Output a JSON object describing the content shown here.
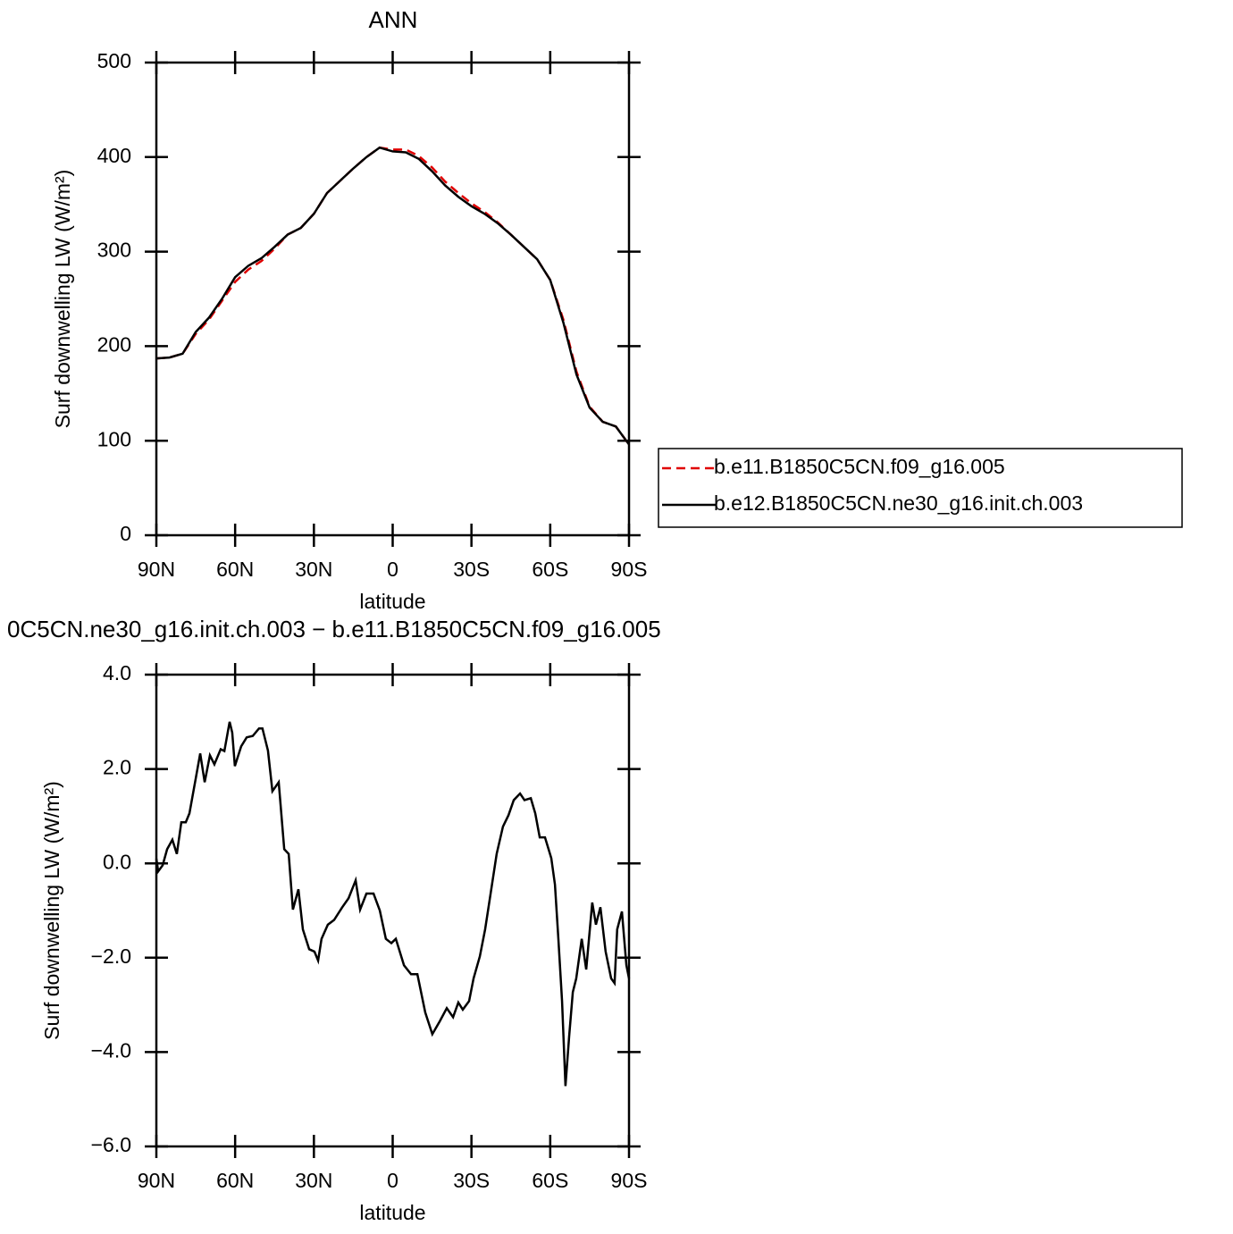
{
  "chart_data": [
    {
      "type": "line",
      "title": "ANN",
      "xlabel": "latitude",
      "ylabel": "Surf downwelling LW (W/m²)",
      "x": [
        90,
        85,
        80,
        75,
        70,
        65,
        60,
        55,
        50,
        45,
        40,
        35,
        30,
        25,
        20,
        15,
        10,
        5,
        0,
        -5,
        -10,
        -15,
        -20,
        -25,
        -30,
        -35,
        -40,
        -45,
        -50,
        -55,
        -60,
        -65,
        -70,
        -75,
        -80,
        -85,
        -90
      ],
      "series": [
        {
          "name": "b.e11.B1850C5CN.f09_g16.005",
          "color": "#e00000",
          "style": "dashed",
          "values": [
            187,
            188,
            192,
            213,
            228,
            248,
            268,
            281,
            290,
            303,
            318,
            325,
            340,
            362,
            375,
            388,
            400,
            410,
            408,
            408,
            401,
            389,
            374,
            362,
            351,
            342,
            331,
            318,
            305,
            292,
            270,
            228,
            173,
            136,
            120,
            115,
            96
          ]
        },
        {
          "name": "b.e12.B1850C5CN.ne30_g16.init.ch.003",
          "color": "#000000",
          "style": "solid",
          "values": [
            187,
            188,
            192,
            215,
            230,
            250,
            273,
            285,
            293,
            305,
            318,
            325,
            340,
            362,
            375,
            388,
            400,
            410,
            406,
            405,
            398,
            385,
            370,
            358,
            348,
            340,
            330,
            318,
            305,
            292,
            270,
            225,
            170,
            135,
            120,
            115,
            96
          ]
        }
      ],
      "xlim": [
        90,
        -90
      ],
      "xticks": [
        {
          "value": 90,
          "label": "90N"
        },
        {
          "value": 60,
          "label": "60N"
        },
        {
          "value": 30,
          "label": "30N"
        },
        0,
        {
          "value": -30,
          "label": "30S"
        },
        {
          "value": -60,
          "label": "60S"
        },
        {
          "value": -90,
          "label": "90S"
        }
      ],
      "ylim": [
        0,
        500
      ],
      "yticks": [
        0,
        100,
        200,
        300,
        400,
        500
      ],
      "legend": "right"
    },
    {
      "type": "line",
      "title": "0C5CN.ne30_g16.init.ch.003 − b.e11.B1850C5CN.f09_g16.005",
      "xlabel": "latitude",
      "ylabel": "Surf downwelling LW (W/m²)",
      "x": [
        90,
        89.3,
        87.6,
        85.9,
        83.9,
        82.2,
        80.5,
        78.8,
        77.4,
        75,
        73.3,
        71.6,
        69.6,
        67.9,
        65.5,
        64.1,
        62.1,
        61.1,
        60.1,
        57.7,
        55.6,
        53.3,
        50.9,
        49.6,
        47.5,
        45.8,
        43.4,
        41.3,
        39.6,
        38,
        35.9,
        34.2,
        31.8,
        29.8,
        28.4,
        27.1,
        24.7,
        22.3,
        19.2,
        16.8,
        14.1,
        12.4,
        10,
        7.3,
        4.9,
        2.6,
        0.5,
        -1.2,
        -4.3,
        -7,
        -9.4,
        -12.4,
        -15.1,
        -17.9,
        -20.6,
        -23,
        -25,
        -26.7,
        -29.1,
        -30.8,
        -33.2,
        -35.2,
        -37.3,
        -39.6,
        -42,
        -44.1,
        -46.1,
        -48.5,
        -50.2,
        -52.6,
        -54.3,
        -56,
        -58,
        -60.4,
        -61.8,
        -63.1,
        -64.5,
        -65.8,
        -67.2,
        -68.6,
        -69.9,
        -72,
        -73.7,
        -76,
        -77.4,
        -79.1,
        -81.1,
        -83.2,
        -84.5,
        -85.5,
        -87.3,
        -89,
        -90
      ],
      "values": [
        0.1,
        -0.17,
        -0.04,
        0.3,
        0.5,
        0.2,
        0.87,
        0.87,
        1.06,
        1.8,
        2.33,
        1.72,
        2.29,
        2.1,
        2.42,
        2.38,
        3.0,
        2.77,
        2.06,
        2.48,
        2.67,
        2.7,
        2.86,
        2.86,
        2.39,
        1.53,
        1.72,
        0.3,
        0.2,
        -0.98,
        -0.55,
        -1.4,
        -1.82,
        -1.87,
        -2.06,
        -1.6,
        -1.3,
        -1.2,
        -0.93,
        -0.74,
        -0.36,
        -0.98,
        -0.64,
        -0.64,
        -1.0,
        -1.6,
        -1.69,
        -1.6,
        -2.16,
        -2.35,
        -2.35,
        -3.16,
        -3.62,
        -3.35,
        -3.07,
        -3.26,
        -2.95,
        -3.1,
        -2.92,
        -2.44,
        -1.97,
        -1.4,
        -0.64,
        0.2,
        0.78,
        1.02,
        1.34,
        1.48,
        1.34,
        1.38,
        1.06,
        0.55,
        0.55,
        0.11,
        -0.45,
        -1.6,
        -2.92,
        -4.72,
        -3.67,
        -2.73,
        -2.44,
        -1.6,
        -2.25,
        -0.83,
        -1.3,
        -0.93,
        -1.87,
        -2.44,
        -2.54,
        -1.4,
        -1.02,
        -2.16,
        -2.44
      ],
      "color": "#000000",
      "xlim": [
        90,
        -90
      ],
      "xticks": [
        {
          "value": 90,
          "label": "90N"
        },
        {
          "value": 60,
          "label": "60N"
        },
        {
          "value": 30,
          "label": "30N"
        },
        0,
        {
          "value": -30,
          "label": "30S"
        },
        {
          "value": -60,
          "label": "60S"
        },
        {
          "value": -90,
          "label": "90S"
        }
      ],
      "ylim": [
        -6,
        4
      ],
      "yticks": [
        {
          "value": -6,
          "label": "−6.0"
        },
        {
          "value": -4,
          "label": "−4.0"
        },
        {
          "value": -2,
          "label": "−2.0"
        },
        {
          "value": 0,
          "label": "0.0"
        },
        {
          "value": 2,
          "label": "2.0"
        },
        {
          "value": 4,
          "label": "4.0"
        }
      ]
    }
  ]
}
